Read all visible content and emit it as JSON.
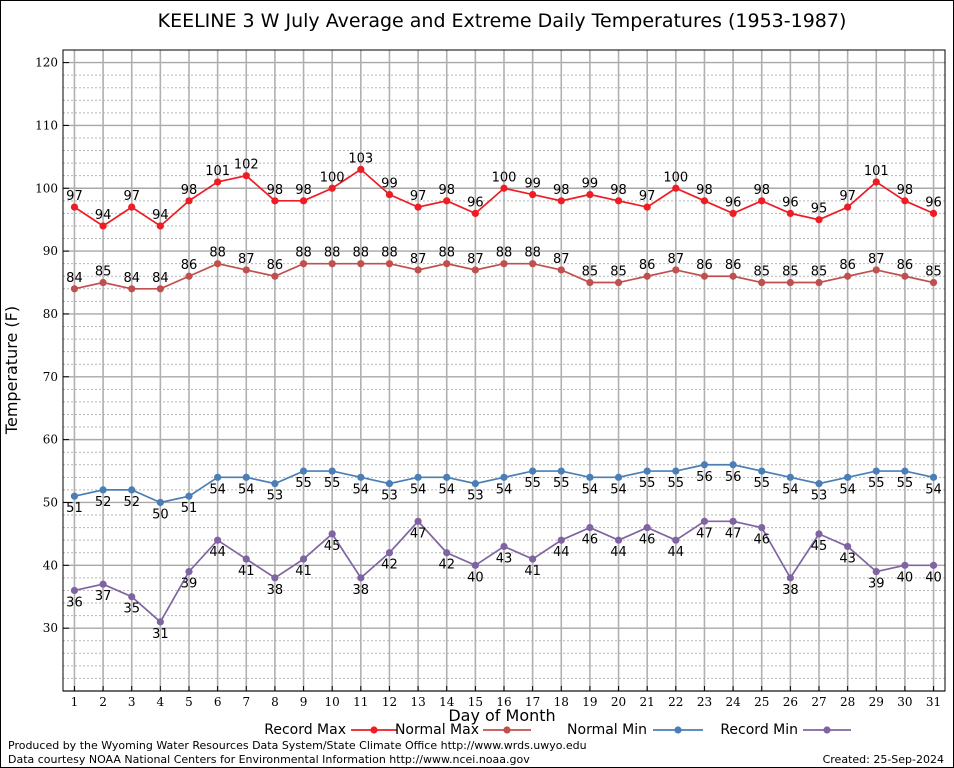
{
  "chart_data": {
    "type": "line",
    "title": "KEELINE 3 W July Average and Extreme Daily Temperatures (1953-1987)",
    "xlabel": "Day of Month",
    "ylabel": "Temperature (F)",
    "ylim": [
      20,
      122
    ],
    "xlim": [
      0.6,
      31.4
    ],
    "yticks": [
      30,
      40,
      50,
      60,
      70,
      80,
      90,
      100,
      110,
      120
    ],
    "x": [
      1,
      2,
      3,
      4,
      5,
      6,
      7,
      8,
      9,
      10,
      11,
      12,
      13,
      14,
      15,
      16,
      17,
      18,
      19,
      20,
      21,
      22,
      23,
      24,
      25,
      26,
      27,
      28,
      29,
      30,
      31
    ],
    "grid": true,
    "legend_position": "bottom",
    "series": [
      {
        "name": "Record Max",
        "color": "#ee1c24",
        "label_pos": "above",
        "values": [
          97,
          94,
          97,
          94,
          98,
          101,
          102,
          98,
          98,
          100,
          103,
          99,
          97,
          98,
          96,
          100,
          99,
          98,
          99,
          98,
          97,
          100,
          98,
          96,
          98,
          96,
          95,
          97,
          101,
          98,
          96
        ]
      },
      {
        "name": "Normal Max",
        "color": "#c0504d",
        "label_pos": "above",
        "values": [
          84,
          85,
          84,
          84,
          86,
          88,
          87,
          86,
          88,
          88,
          88,
          88,
          87,
          88,
          87,
          88,
          88,
          87,
          85,
          85,
          86,
          87,
          86,
          86,
          85,
          85,
          85,
          86,
          87,
          86,
          85
        ]
      },
      {
        "name": "Normal Min",
        "color": "#4a7eb5",
        "label_pos": "below",
        "values": [
          51,
          52,
          52,
          50,
          51,
          54,
          54,
          53,
          55,
          55,
          54,
          53,
          54,
          54,
          53,
          54,
          55,
          55,
          54,
          54,
          55,
          55,
          56,
          56,
          55,
          54,
          53,
          54,
          55,
          55,
          54
        ]
      },
      {
        "name": "Record Min",
        "color": "#8064a2",
        "label_pos": "below",
        "values": [
          36,
          37,
          35,
          31,
          39,
          44,
          41,
          38,
          41,
          45,
          38,
          42,
          47,
          42,
          40,
          43,
          41,
          44,
          46,
          44,
          46,
          44,
          47,
          47,
          46,
          38,
          45,
          43,
          39,
          40,
          40
        ]
      }
    ]
  },
  "footer": {
    "produced_by": "Produced by the Wyoming Water Resources Data System/State Climate Office http://www.wrds.uwyo.edu",
    "courtesy": "Data courtesy NOAA National Centers for Environmental Information http://www.ncei.noaa.gov",
    "created": "Created:  25-Sep-2024"
  }
}
